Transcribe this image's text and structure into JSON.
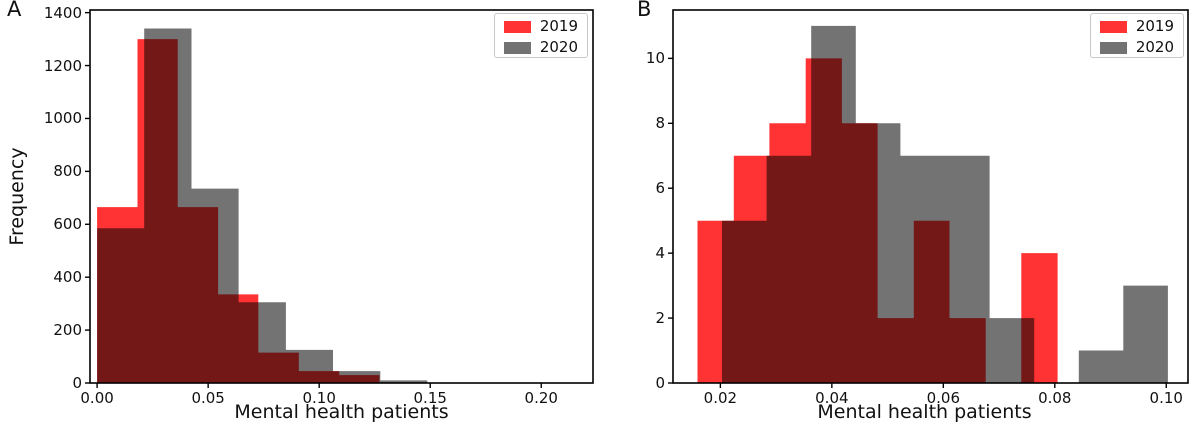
{
  "figure_background": "#ffffff",
  "colors": {
    "red_2019": "#ff3333",
    "gray_2020": "#737373",
    "overlap_maroon": "#731717",
    "axis": "#000000",
    "text": "#111111",
    "legend_border": "#c9c9c9"
  },
  "chart_data": [
    {
      "panel_label": "A",
      "type": "histogram",
      "title": "",
      "xlabel": "Mental health patients",
      "ylabel": "Frequency",
      "xlim": [
        -0.0032,
        0.2233
      ],
      "ylim": [
        0,
        1410
      ],
      "xticks": [
        0.0,
        0.05,
        0.1,
        0.15,
        0.2
      ],
      "xtick_labels": [
        "0.00",
        "0.05",
        "0.10",
        "0.15",
        "0.20"
      ],
      "yticks": [
        0,
        200,
        400,
        600,
        800,
        1000,
        1200,
        1400
      ],
      "ytick_labels": [
        "0",
        "200",
        "400",
        "600",
        "800",
        "1000",
        "1200",
        "1400"
      ],
      "grid": false,
      "legend_position": "upper right",
      "series": [
        {
          "name": "2019",
          "color": "#ff3333",
          "draw": "opaque",
          "bin_edges": [
            0.0,
            0.0182,
            0.0363,
            0.0545,
            0.0726,
            0.0908,
            0.109,
            0.1271
          ],
          "counts": [
            665,
            1300,
            665,
            335,
            115,
            45,
            30
          ]
        },
        {
          "name": "2020",
          "color": "#737373",
          "draw": "black-overlay",
          "overlay_opacity": 0.55,
          "bin_edges": [
            0.0,
            0.0212,
            0.0425,
            0.0637,
            0.085,
            0.1062,
            0.1275,
            0.1487
          ],
          "counts": [
            585,
            1340,
            735,
            305,
            125,
            45,
            10
          ]
        }
      ]
    },
    {
      "panel_label": "B",
      "type": "histogram",
      "title": "",
      "xlabel": "Mental health patients",
      "ylabel": "",
      "xlim": [
        0.0115,
        0.1039
      ],
      "ylim": [
        0,
        11.49
      ],
      "xticks": [
        0.02,
        0.04,
        0.06,
        0.08,
        0.1
      ],
      "xtick_labels": [
        "0.02",
        "0.04",
        "0.06",
        "0.08",
        "0.10"
      ],
      "yticks": [
        0,
        2,
        4,
        6,
        8,
        10
      ],
      "ytick_labels": [
        "0",
        "2",
        "4",
        "6",
        "8",
        "10"
      ],
      "grid": false,
      "legend_position": "upper right",
      "series": [
        {
          "name": "2019",
          "color": "#ff3333",
          "draw": "opaque",
          "bin_edges": [
            0.0159,
            0.0224,
            0.0288,
            0.0353,
            0.0418,
            0.0482,
            0.0547,
            0.0611,
            0.0676,
            0.074,
            0.0805
          ],
          "counts": [
            5,
            7,
            8,
            10,
            8,
            2,
            5,
            2,
            0,
            4
          ]
        },
        {
          "name": "2020",
          "color": "#737373",
          "draw": "black-overlay",
          "overlay_opacity": 0.55,
          "bin_edges": [
            0.0203,
            0.0283,
            0.0363,
            0.0443,
            0.0523,
            0.0603,
            0.0683,
            0.0763,
            0.0843,
            0.0923,
            0.1003
          ],
          "counts": [
            5,
            7,
            11,
            8,
            7,
            7,
            2,
            0,
            1,
            3
          ]
        }
      ]
    }
  ]
}
